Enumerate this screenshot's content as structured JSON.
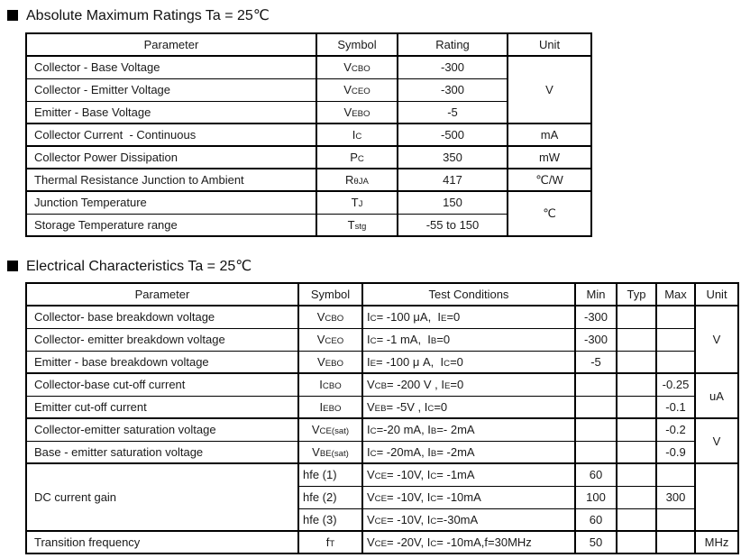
{
  "abs_max": {
    "title": "Absolute Maximum Ratings Ta = 25℃",
    "headers": {
      "parameter": "Parameter",
      "symbol": "Symbol",
      "rating": "Rating",
      "unit": "Unit"
    },
    "rows": [
      {
        "parameter": "Collector - Base Voltage",
        "symbol": "V~CBO~",
        "rating": "-300",
        "unit": "V"
      },
      {
        "parameter": "Collector - Emitter Voltage",
        "symbol": "V~CEO~",
        "rating": "-300"
      },
      {
        "parameter": "Emitter - Base Voltage",
        "symbol": "V~EBO~",
        "rating": "-5"
      },
      {
        "parameter": "Collector Current  - Continuous",
        "symbol": "I~C~",
        "rating": "-500",
        "unit": "mA"
      },
      {
        "parameter": "Collector Power Dissipation",
        "symbol": "P~C~",
        "rating": "350",
        "unit": "mW"
      },
      {
        "parameter": "Thermal Resistance Junction to Ambient",
        "symbol": "R~θJA~",
        "rating": "417",
        "unit": "℃/W"
      },
      {
        "parameter": "Junction Temperature",
        "symbol": "T~J~",
        "rating": "150",
        "unit": "℃"
      },
      {
        "parameter": "Storage Temperature range",
        "symbol": "T~stg~",
        "rating": "-55 to 150"
      }
    ]
  },
  "elec": {
    "title": "Electrical Characteristics Ta = 25℃",
    "headers": {
      "parameter": "Parameter",
      "symbol": "Symbol",
      "conditions": "Test Conditions",
      "min": "Min",
      "typ": "Typ",
      "max": "Max",
      "unit": "Unit"
    },
    "rows": [
      {
        "parameter": "Collector- base breakdown voltage",
        "symbol": "V~CBO~",
        "conditions": "I~C~= -100 μA,  I~E~=0",
        "min": "-300",
        "typ": "",
        "max": "",
        "unit": "V"
      },
      {
        "parameter": "Collector- emitter breakdown voltage",
        "symbol": "V~CEO~",
        "conditions": "I~C~= -1 mA,  I~B~=0",
        "min": "-300",
        "typ": "",
        "max": ""
      },
      {
        "parameter": "Emitter - base breakdown voltage",
        "symbol": "V~EBO~",
        "conditions": "I~E~= -100 μ A,  I~C~=0",
        "min": "-5",
        "typ": "",
        "max": ""
      },
      {
        "parameter": "Collector-base cut-off current",
        "symbol": "I~CBO~",
        "conditions": "V~CB~= -200 V , I~E~=0",
        "min": "",
        "typ": "",
        "max": "-0.25",
        "unit": "uA"
      },
      {
        "parameter": "Emitter cut-off current",
        "symbol": "I~EBO~",
        "conditions": "V~EB~= -5V , I~C~=0",
        "min": "",
        "typ": "",
        "max": "-0.1"
      },
      {
        "parameter": "Collector-emitter saturation voltage",
        "symbol": "V~CE(sat)~",
        "conditions": "I~C~=-20 mA, I~B~=- 2mA",
        "min": "",
        "typ": "",
        "max": "-0.2",
        "unit": "V"
      },
      {
        "parameter": "Base - emitter saturation voltage",
        "symbol": "V~BE(sat)~",
        "conditions": "I~C~= -20mA, I~B~= -2mA",
        "min": "",
        "typ": "",
        "max": "-0.9"
      },
      {
        "parameter": "DC current gain",
        "symbol": "hfe (1)",
        "conditions": "V~CE~= -10V, I~C~= -1mA",
        "min": "60",
        "typ": "",
        "max": "",
        "unit": ""
      },
      {
        "parameter": "",
        "symbol": "hfe (2)",
        "conditions": "V~CE~= -10V, I~C~= -10mA",
        "min": "100",
        "typ": "",
        "max": "300"
      },
      {
        "parameter": "",
        "symbol": "hfe (3)",
        "conditions": "V~CE~= -10V, I~C~=-30mA",
        "min": "60",
        "typ": "",
        "max": ""
      },
      {
        "parameter": "Transition frequency",
        "symbol": "f~T~",
        "conditions": "V~CE~= -20V, I~C~= -10mA,f=30MHz",
        "min": "50",
        "typ": "",
        "max": "",
        "unit": "MHz"
      }
    ]
  }
}
